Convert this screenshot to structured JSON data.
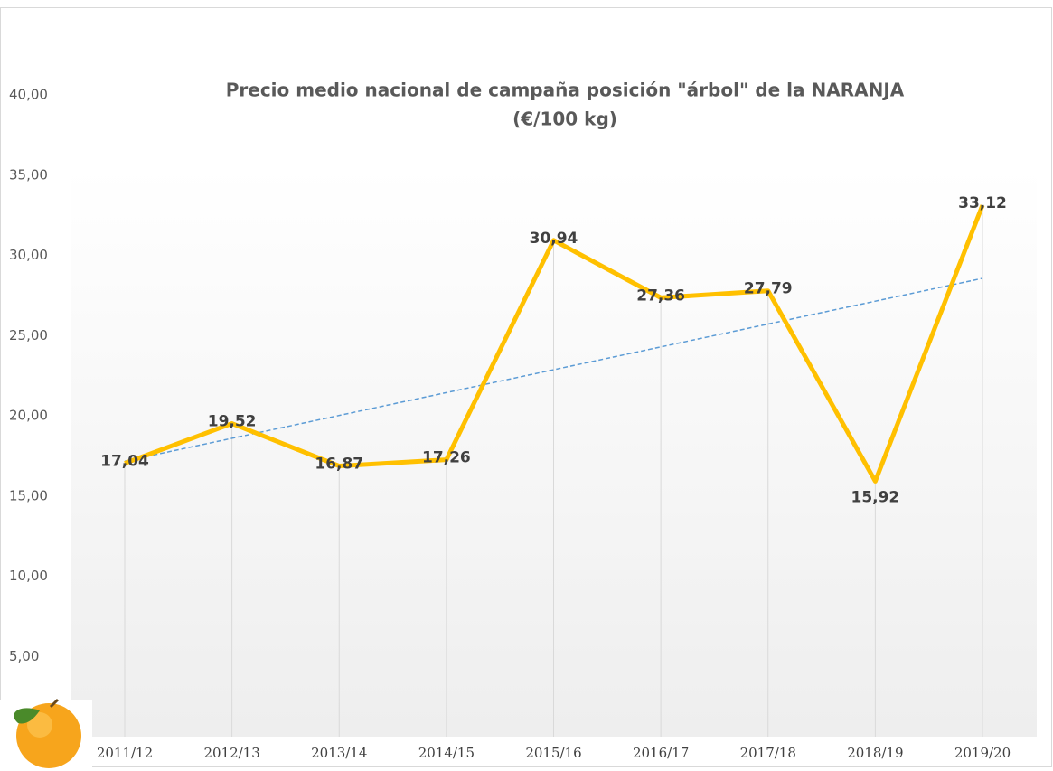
{
  "chart_data": {
    "type": "line",
    "title": [
      "Precio medio nacional de campaña posición  \"árbol\" de  la NARANJA",
      "(€/100 kg)"
    ],
    "categories": [
      "2011/12",
      "2012/13",
      "2013/14",
      "2014/15",
      "2015/16",
      "2016/17",
      "2017/18",
      "2018/19",
      "2019/20"
    ],
    "values": [
      17.04,
      19.52,
      16.87,
      17.26,
      30.94,
      27.36,
      27.79,
      15.92,
      33.12
    ],
    "value_labels": [
      "17,04",
      "19,52",
      "16,87",
      "17,26",
      "30,94",
      "27,36",
      "27,79",
      "15,92",
      "33,12"
    ],
    "color": "#ffc000",
    "trendline": "linear",
    "trendline_color": "#5b9bd5",
    "ylim": [
      0,
      40
    ],
    "yticks": [
      {
        "value": 5,
        "label": "5,00"
      },
      {
        "value": 10,
        "label": "10,00"
      },
      {
        "value": 15,
        "label": "15,00"
      },
      {
        "value": 20,
        "label": "20,00"
      },
      {
        "value": 25,
        "label": "25,00"
      },
      {
        "value": 30,
        "label": "30,00"
      },
      {
        "value": 35,
        "label": "35,00"
      },
      {
        "value": 40,
        "label": "40,00"
      }
    ]
  }
}
